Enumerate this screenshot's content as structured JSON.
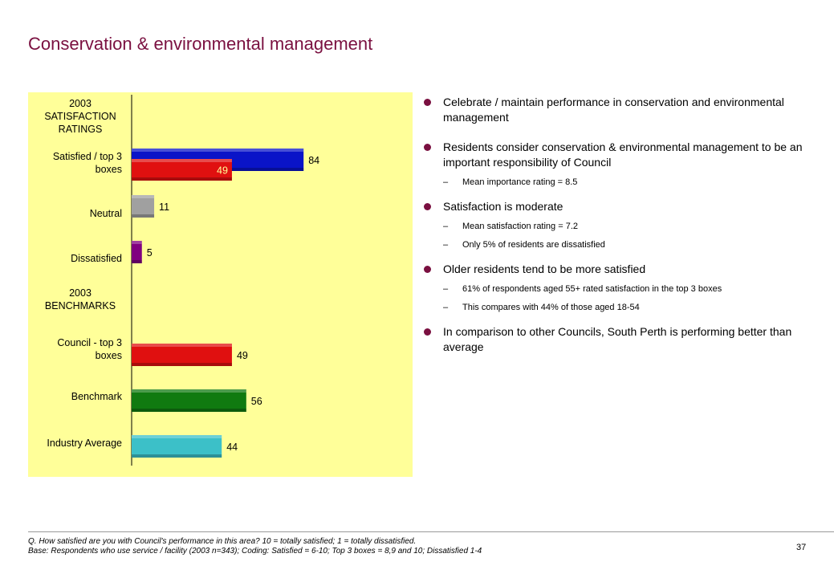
{
  "title": "Conservation & environmental management",
  "chart_data": {
    "type": "bar",
    "orientation": "horizontal",
    "xlim": [
      0,
      100
    ],
    "section_headers": [
      "2003 SATISFACTION RATINGS",
      "2003 BENCHMARKS"
    ],
    "categories": [
      "Satisfied / top 3 boxes",
      "Neutral",
      "Dissatisfied",
      "Council - top 3 boxes",
      "Benchmark",
      "Industry Average"
    ],
    "bars": [
      {
        "category": "Satisfied / top 3 boxes",
        "value": 84,
        "color": "#0a14c8"
      },
      {
        "category": "Satisfied / top 3 boxes",
        "value": 49,
        "color": "#e01010"
      },
      {
        "category": "Neutral",
        "value": 11,
        "color": "#a0a0a0"
      },
      {
        "category": "Dissatisfied",
        "value": 5,
        "color": "#800080"
      },
      {
        "category": "Council - top 3 boxes",
        "value": 49,
        "color": "#e01010"
      },
      {
        "category": "Benchmark",
        "value": 56,
        "color": "#107a10"
      },
      {
        "category": "Industry Average",
        "value": 44,
        "color": "#3cc0c8"
      }
    ],
    "background_color": "#ffff99"
  },
  "bullets": [
    {
      "text": "Celebrate / maintain performance in conservation and environmental management",
      "subs": []
    },
    {
      "text": "Residents consider conservation & environmental management to be an important responsibility of Council",
      "subs": [
        "Mean importance rating = 8.5"
      ]
    },
    {
      "text": "Satisfaction is moderate",
      "subs": [
        "Mean satisfaction rating = 7.2",
        "Only 5% of residents are dissatisfied"
      ]
    },
    {
      "text": "Older residents tend to be more satisfied",
      "subs": [
        "61% of respondents aged 55+ rated satisfaction in the top 3 boxes",
        "This compares with 44% of those aged 18-54"
      ]
    },
    {
      "text": "In comparison to other Councils, South Perth is performing better than average",
      "subs": []
    }
  ],
  "footnote": {
    "question": "Q. How satisfied are you with Council's performance in this area?  10 = totally satisfied; 1 = totally dissatisfied.",
    "base": "Base: Respondents who use service / facility (2003 n=343);  Coding: Satisfied = 6-10; Top 3 boxes = 8,9 and 10; Dissatisfied 1-4"
  },
  "page_number": "37"
}
